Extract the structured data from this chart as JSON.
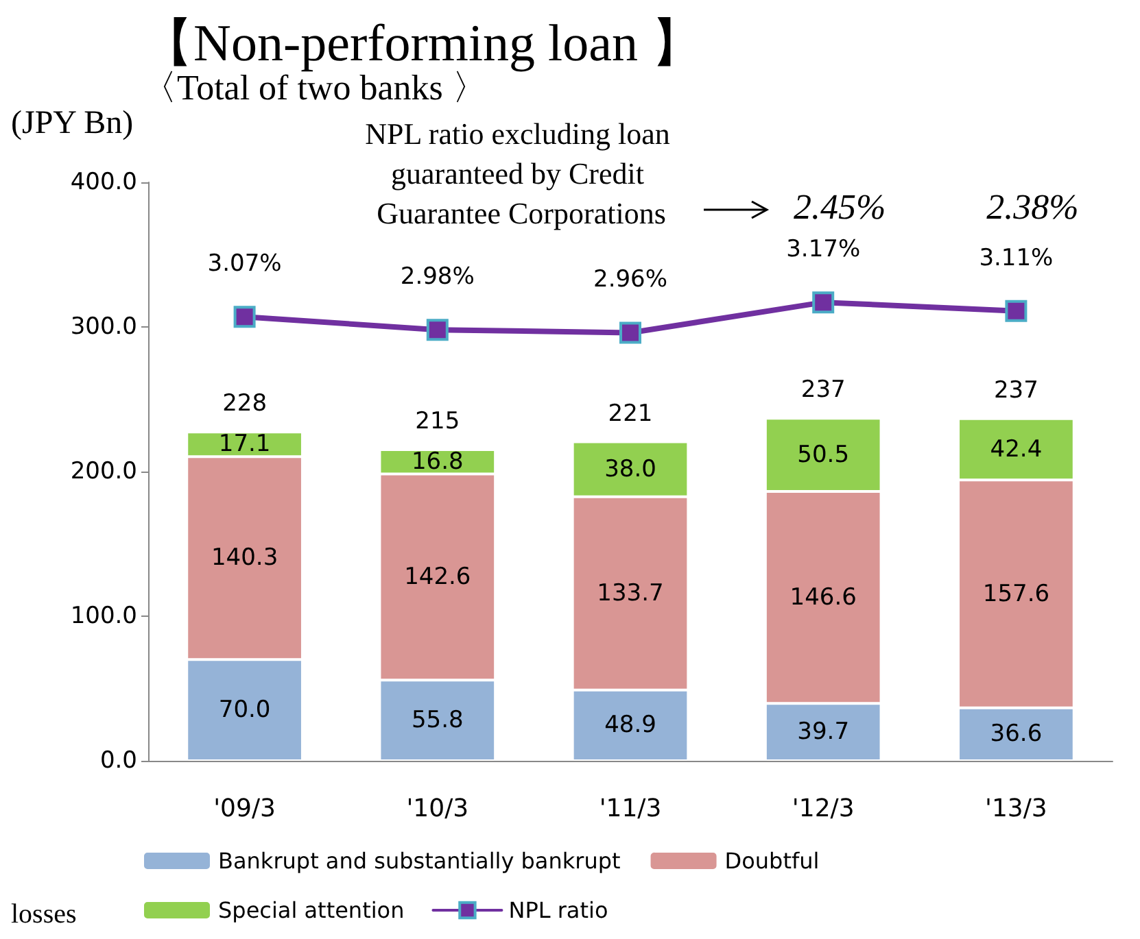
{
  "chart_data": {
    "type": "bar",
    "title": "【Non-performing loan 】",
    "subtitle": "〈Total of two banks 〉",
    "ylabel": "(JPY Bn)",
    "categories": [
      "'09/3",
      "'10/3",
      "'11/3",
      "'12/3",
      "'13/3"
    ],
    "stacked": true,
    "series": [
      {
        "name": "Bankrupt and substantially bankrupt",
        "color": "#95b3d7",
        "values": [
          70.0,
          55.8,
          48.9,
          39.7,
          36.6
        ],
        "value_labels": [
          "70.0",
          "55.8",
          "48.9",
          "39.7",
          "36.6"
        ]
      },
      {
        "name": "Doubtful",
        "color": "#d99694",
        "values": [
          140.3,
          142.6,
          133.7,
          146.6,
          157.6
        ],
        "value_labels": [
          "140.3",
          "142.6",
          "133.7",
          "146.6",
          "157.6"
        ]
      },
      {
        "name": "Special attention",
        "color": "#92d050",
        "values": [
          17.1,
          16.8,
          38.0,
          50.5,
          42.4
        ],
        "value_labels": [
          "17.1",
          "16.8",
          "38.0",
          "50.5",
          "42.4"
        ]
      },
      {
        "name": "NPL ratio",
        "type": "line",
        "axis": "y2",
        "color": "#7030a0",
        "marker": "square",
        "values": [
          3.07,
          2.98,
          2.96,
          3.17,
          3.11
        ],
        "value_labels": [
          "3.07%",
          "2.98%",
          "2.96%",
          "3.17%",
          "3.11%"
        ]
      }
    ],
    "totals": [
      "228",
      "215",
      "221",
      "237",
      "237"
    ],
    "ylim": [
      0,
      400
    ],
    "yticks": [
      {
        "value": 0,
        "label": "0.0"
      },
      {
        "value": 100,
        "label": "100.0"
      },
      {
        "value": 200,
        "label": "200.0"
      },
      {
        "value": 300,
        "label": "300.0"
      },
      {
        "value": 400,
        "label": "400.0"
      }
    ],
    "y2lim": [
      0,
      4
    ],
    "grid": false,
    "legend": "bottom",
    "annotations": [
      {
        "text": "NPL ratio excluding loan guaranteed by Credit Guarantee Corporations"
      },
      "2.45%",
      "2.38%",
      {
        "text": "losses"
      }
    ]
  }
}
